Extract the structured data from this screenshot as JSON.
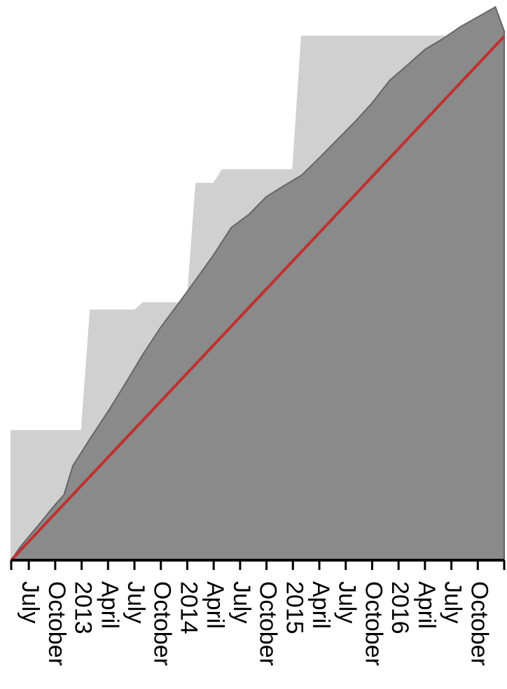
{
  "chart_data": {
    "type": "area",
    "xlim": [
      "2012-05",
      "2017-01"
    ],
    "ylim": [
      0,
      106
    ],
    "xticks": [
      {
        "value": "2012-07",
        "label": "July"
      },
      {
        "value": "2012-10",
        "label": "October"
      },
      {
        "value": "2013-01",
        "label": "2013"
      },
      {
        "value": "2013-04",
        "label": "April"
      },
      {
        "value": "2013-07",
        "label": "July"
      },
      {
        "value": "2013-10",
        "label": "October"
      },
      {
        "value": "2014-01",
        "label": "2014"
      },
      {
        "value": "2014-04",
        "label": "April"
      },
      {
        "value": "2014-07",
        "label": "July"
      },
      {
        "value": "2014-10",
        "label": "October"
      },
      {
        "value": "2015-01",
        "label": "2015"
      },
      {
        "value": "2015-04",
        "label": "April"
      },
      {
        "value": "2015-07",
        "label": "July"
      },
      {
        "value": "2015-10",
        "label": "October"
      },
      {
        "value": "2016-01",
        "label": "2016"
      },
      {
        "value": "2016-04",
        "label": "April"
      },
      {
        "value": "2016-07",
        "label": "July"
      },
      {
        "value": "2016-10",
        "label": "October"
      }
    ],
    "series": [
      {
        "color": "#d0d0d0",
        "stroke": "#d0d0d0",
        "x": [
          "2012-05",
          "2013-01",
          "2013-02",
          "2013-07",
          "2013-08",
          "2014-01",
          "2014-02",
          "2014-04",
          "2014-05",
          "2015-01",
          "2015-02",
          "2017-01"
        ],
        "values": [
          24.7,
          24.7,
          47.7,
          47.7,
          49.1,
          49.1,
          71.9,
          71.9,
          74.5,
          74.5,
          100,
          100
        ]
      },
      {
        "color": "#8a8a8a",
        "stroke": "#666666",
        "x": [
          "2012-05",
          "2012-06",
          "2012-08",
          "2012-10",
          "2012-11",
          "2012-12",
          "2013-02",
          "2013-04",
          "2013-06",
          "2013-08",
          "2013-10",
          "2013-12",
          "2014-02",
          "2014-04",
          "2014-06",
          "2014-08",
          "2014-10",
          "2014-12",
          "2015-02",
          "2015-04",
          "2015-06",
          "2015-08",
          "2015-10",
          "2015-12",
          "2016-02",
          "2016-04",
          "2016-06",
          "2016-08",
          "2016-10",
          "2016-12",
          "2017-01"
        ],
        "values": [
          0,
          2.5,
          6.5,
          10.6,
          12.5,
          18,
          23.3,
          28.4,
          33.8,
          39.4,
          44.5,
          49,
          53.6,
          58.3,
          63.5,
          66,
          69.4,
          71.5,
          73.5,
          76.8,
          80.2,
          83.6,
          87.3,
          91.6,
          94.5,
          97.5,
          99.5,
          101.8,
          103.7,
          105.6,
          101
        ]
      },
      {
        "type": "line",
        "color": "#c0302f",
        "x": [
          "2012-05",
          "2017-01"
        ],
        "values": [
          0,
          100
        ]
      }
    ]
  }
}
